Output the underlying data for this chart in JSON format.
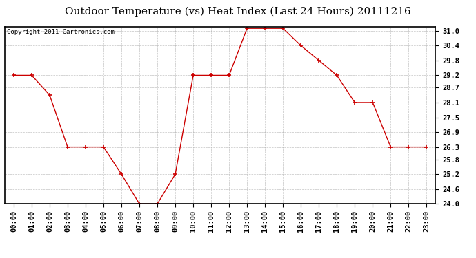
{
  "title": "Outdoor Temperature (vs) Heat Index (Last 24 Hours) 20111216",
  "copyright": "Copyright 2011 Cartronics.com",
  "x_labels": [
    "00:00",
    "01:00",
    "02:00",
    "03:00",
    "04:00",
    "05:00",
    "06:00",
    "07:00",
    "08:00",
    "09:00",
    "10:00",
    "11:00",
    "12:00",
    "13:00",
    "14:00",
    "15:00",
    "16:00",
    "17:00",
    "18:00",
    "19:00",
    "20:00",
    "21:00",
    "22:00",
    "23:00"
  ],
  "y_values": [
    29.2,
    29.2,
    28.4,
    26.3,
    26.3,
    26.3,
    25.2,
    24.0,
    24.0,
    25.2,
    29.2,
    29.2,
    29.2,
    31.1,
    31.1,
    31.1,
    30.4,
    29.8,
    29.2,
    28.1,
    28.1,
    26.3,
    26.3,
    26.3
  ],
  "line_color": "#cc0000",
  "marker": "+",
  "marker_size": 5,
  "marker_color": "#cc0000",
  "ylim": [
    24.0,
    31.1
  ],
  "yticks": [
    24.0,
    24.6,
    25.2,
    25.8,
    26.3,
    26.9,
    27.5,
    28.1,
    28.7,
    29.2,
    29.8,
    30.4,
    31.0
  ],
  "background_color": "#ffffff",
  "plot_bg_color": "#ffffff",
  "grid_color": "#aaaaaa",
  "title_fontsize": 11,
  "copyright_fontsize": 6.5,
  "tick_fontsize": 7.5
}
